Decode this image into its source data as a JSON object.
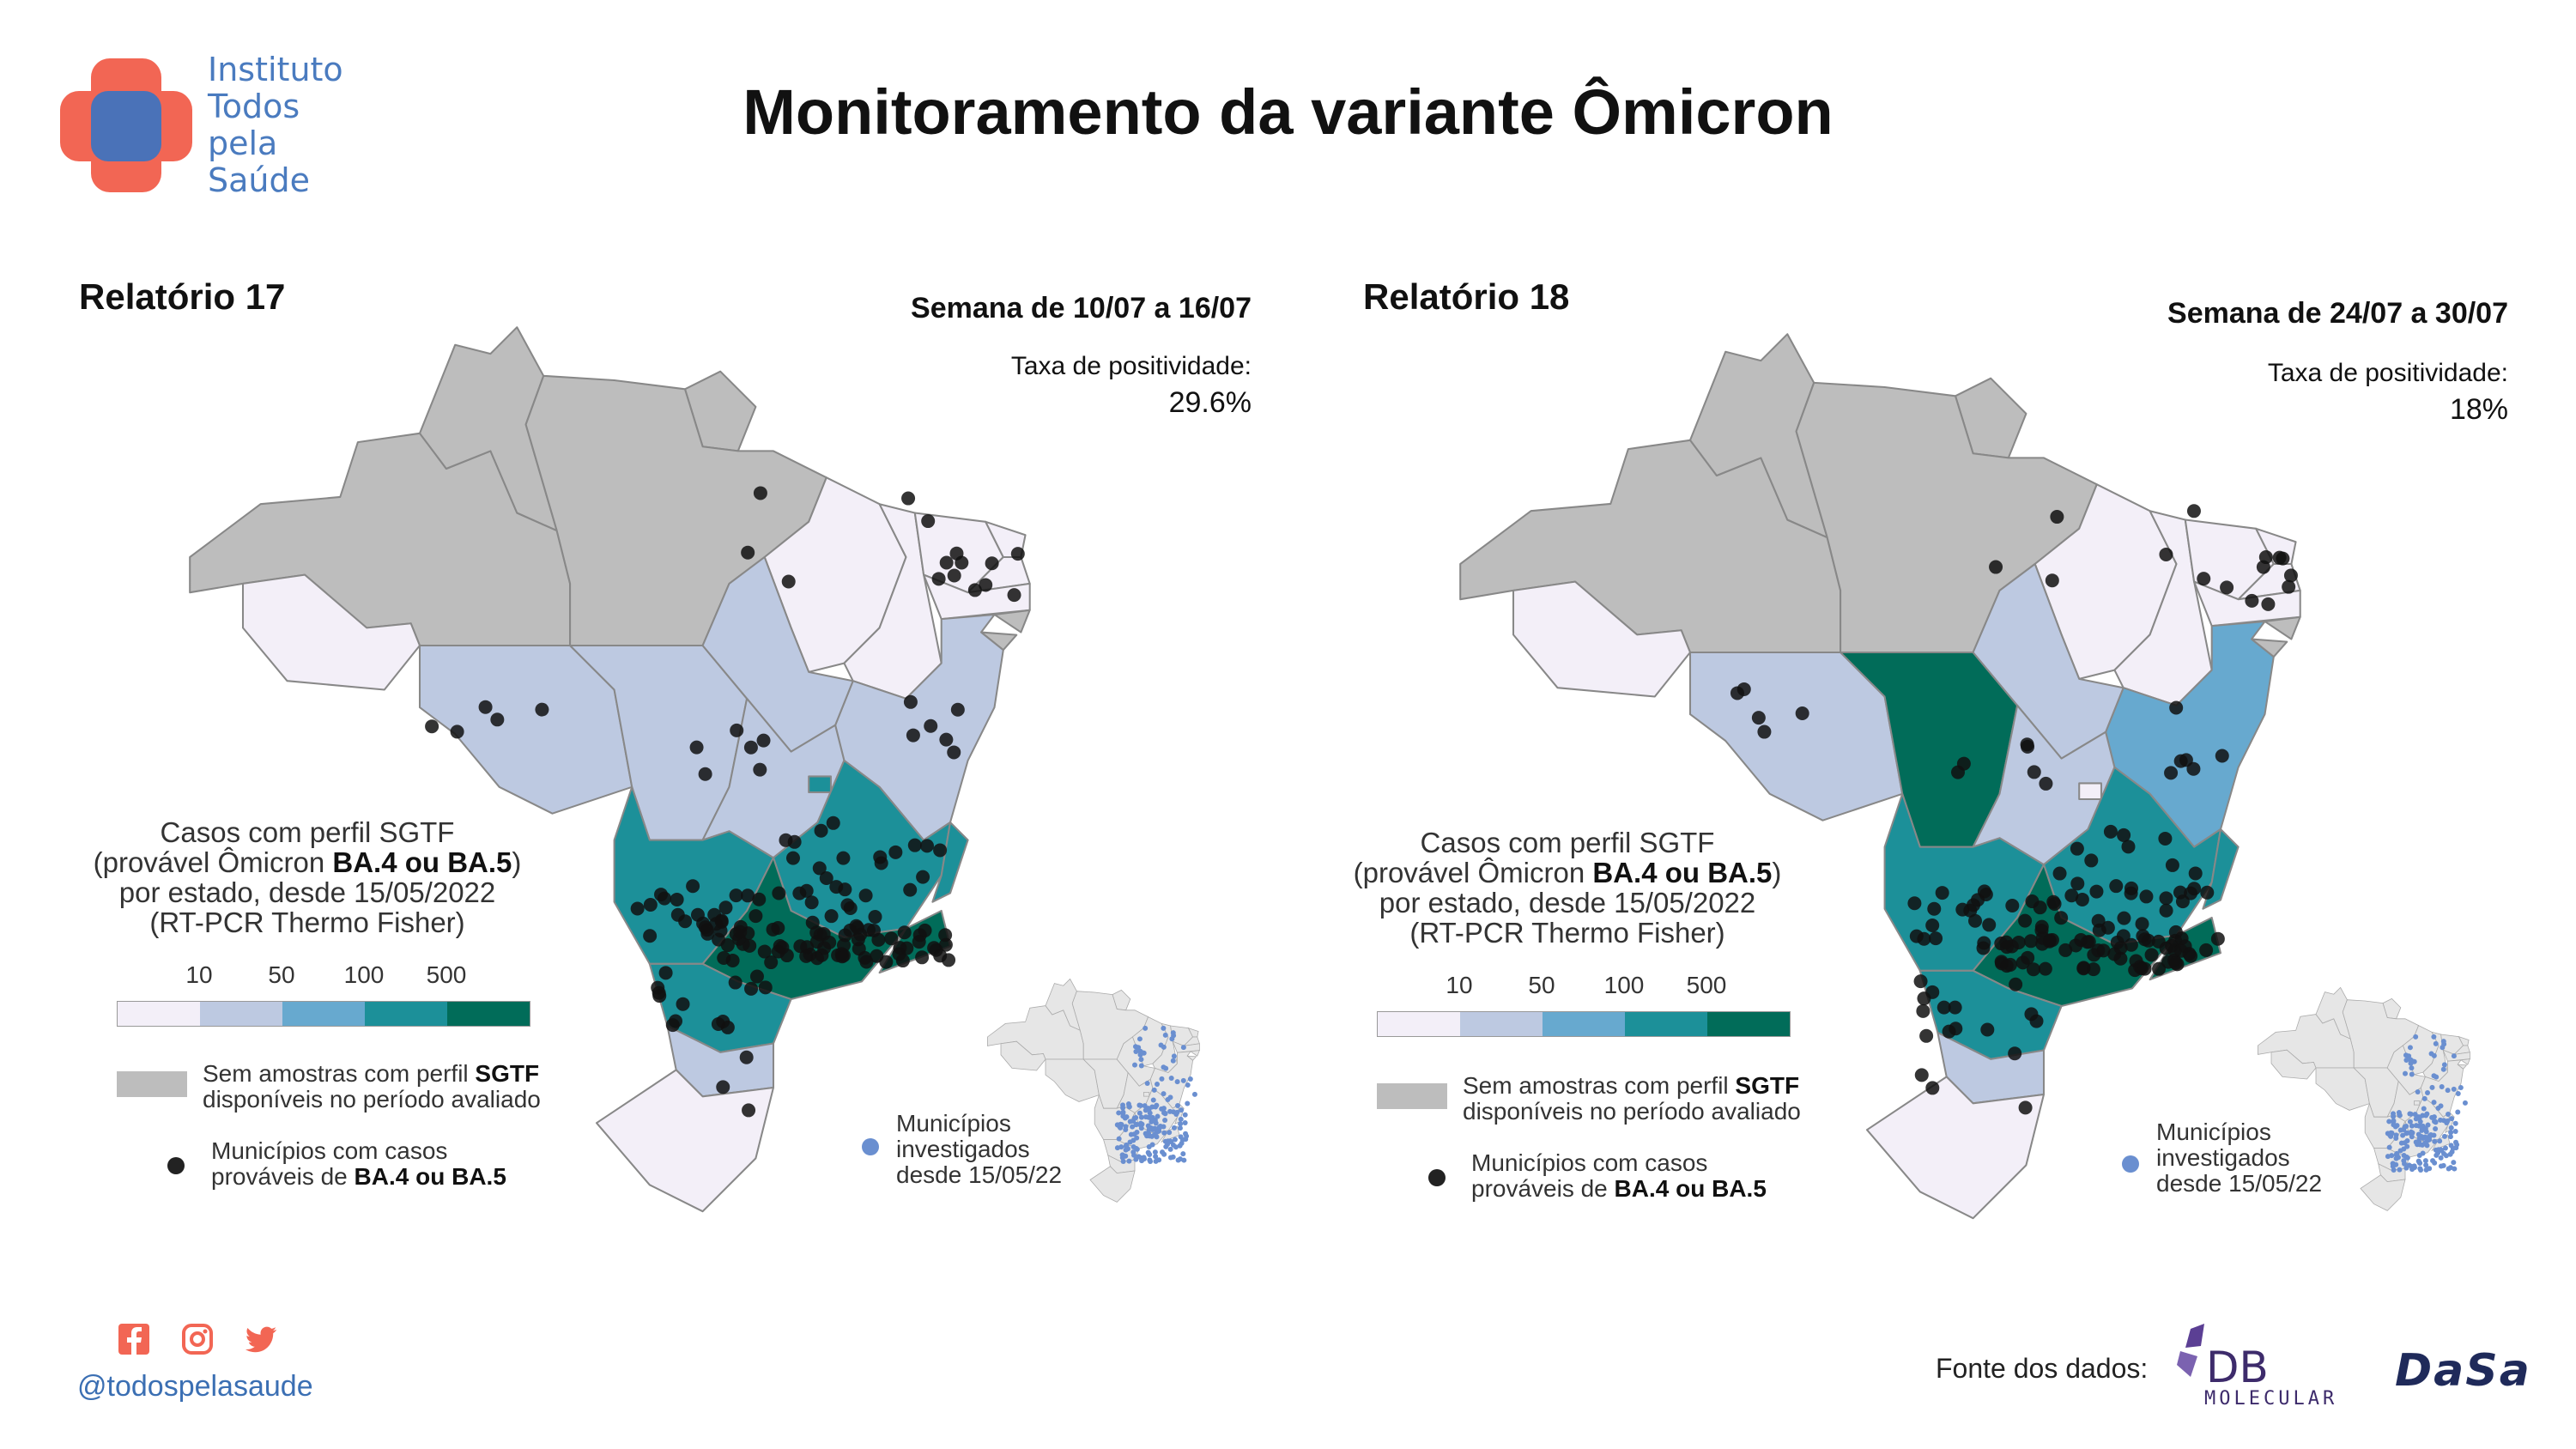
{
  "logo": {
    "lines": [
      "Instituto",
      "Todos",
      "pela",
      "Saúde"
    ],
    "colors": {
      "red": "#f26654",
      "blue": "#4a72b8"
    }
  },
  "title": "Monitoramento da variante Ômicron",
  "reports": [
    {
      "label": "Relatório 17",
      "week": "Semana de 10/07 a 16/07",
      "positivity_label": "Taxa de positividade:",
      "positivity_value": "29.6%",
      "state_categories": {
        "no_data": [
          "AM",
          "RR",
          "AP",
          "PA"
        ],
        "lt10": [
          "AC",
          "MA",
          "PI",
          "CE",
          "RN",
          "PB",
          "PE",
          "RS"
        ],
        "10-50": [
          "RO",
          "MT",
          "TO",
          "BA",
          "GO",
          "SC"
        ],
        "50-100": [],
        "100-500": [
          "MS",
          "MG",
          "PR",
          "ES",
          "DF"
        ],
        "gt500": [
          "SP",
          "RJ"
        ],
        "no_data_small": [
          "AL",
          "SE"
        ]
      }
    },
    {
      "label": "Relatório 18",
      "week": "Semana de 24/07 a 30/07",
      "positivity_label": "Taxa de positividade:",
      "positivity_value": "18%",
      "state_categories": {
        "no_data": [
          "AM",
          "RR",
          "AP",
          "PA"
        ],
        "lt10": [
          "AC",
          "MA",
          "PI",
          "CE",
          "RN",
          "PB",
          "PE",
          "RS"
        ],
        "10-50": [
          "RO",
          "TO",
          "GO",
          "SC"
        ],
        "50-100": [
          "BA"
        ],
        "100-500": [
          "MS",
          "MG",
          "PR",
          "ES"
        ],
        "gt500": [
          "MT",
          "SP",
          "RJ"
        ],
        "no_data_small": [
          "AL",
          "SE"
        ]
      }
    }
  ],
  "legend": {
    "title_line1": "Casos com perfil SGTF",
    "title_line2_pre": "(provável Ômicron ",
    "title_line2_bold": "BA.4 ou BA.5",
    "title_line2_post": ")",
    "title_line3": "por estado, desde 15/05/2022",
    "title_line4": "(RT-PCR Thermo Fisher)",
    "scale_ticks": [
      "10",
      "50",
      "100",
      "500"
    ],
    "scale_colors": [
      "#f3eff8",
      "#bdc9e1",
      "#67a9cf",
      "#1c9099",
      "#016c59"
    ],
    "no_data_color": "#bdbdbd",
    "no_data_line1_pre": "Sem amostras com perfil ",
    "no_data_line1_bold": "SGTF",
    "no_data_line2": "disponíveis no período avaliado",
    "dots_line1": "Municípios com casos",
    "dots_line2_pre": "prováveis de ",
    "dots_line2_bold": "BA.4 ou BA.5",
    "inset_line1": "Municípios",
    "inset_line2": "investigados",
    "inset_line3": "desde 15/05/22"
  },
  "footer": {
    "handle": "@todospelasaude",
    "social_icons": [
      "facebook-icon",
      "instagram-icon",
      "twitter-icon"
    ],
    "source_label": "Fonte dos dados:",
    "source_logos": [
      "DB MOLECULAR",
      "DASA"
    ],
    "db_text": "DB",
    "db_sub": "MOLECULAR",
    "dasa_text": "DaSa"
  }
}
